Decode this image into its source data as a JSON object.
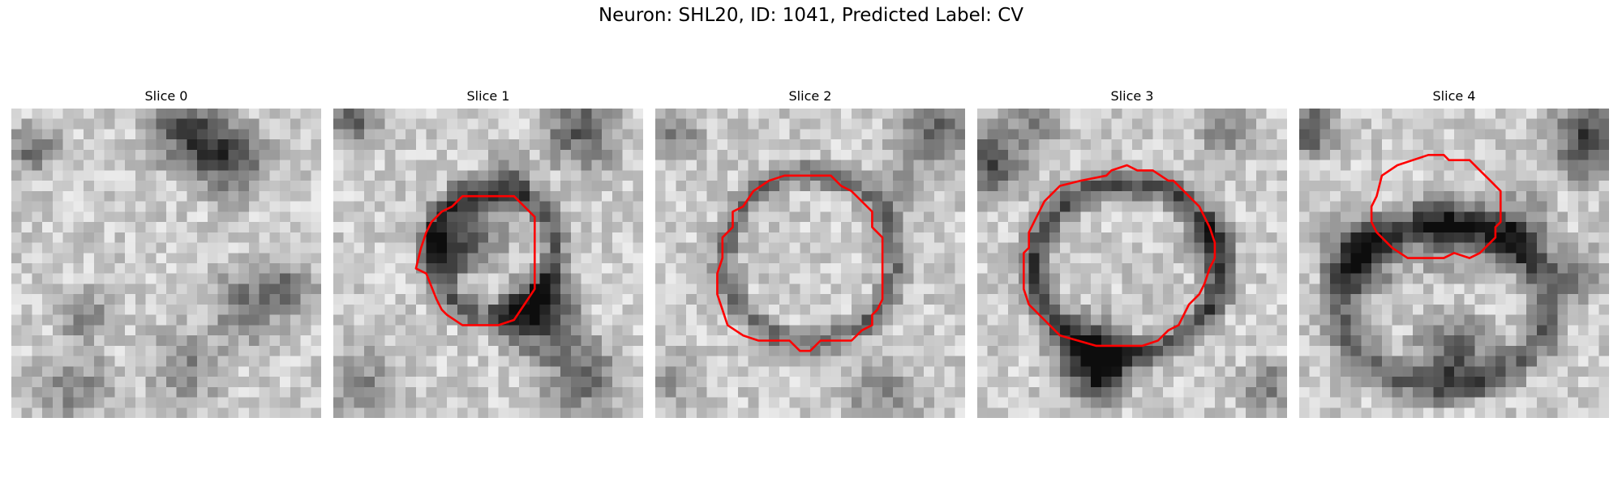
{
  "figure": {
    "title": "Neuron: SHL20, ID: 1041, Predicted Label: CV"
  },
  "colors": {
    "contour": "#ff0000",
    "background": "#ffffff"
  },
  "panels": [
    {
      "label": "Slice 0",
      "has_contour": false
    },
    {
      "label": "Slice 1",
      "has_contour": true
    },
    {
      "label": "Slice 2",
      "has_contour": true
    },
    {
      "label": "Slice 3",
      "has_contour": true
    },
    {
      "label": "Slice 4",
      "has_contour": true
    }
  ]
}
